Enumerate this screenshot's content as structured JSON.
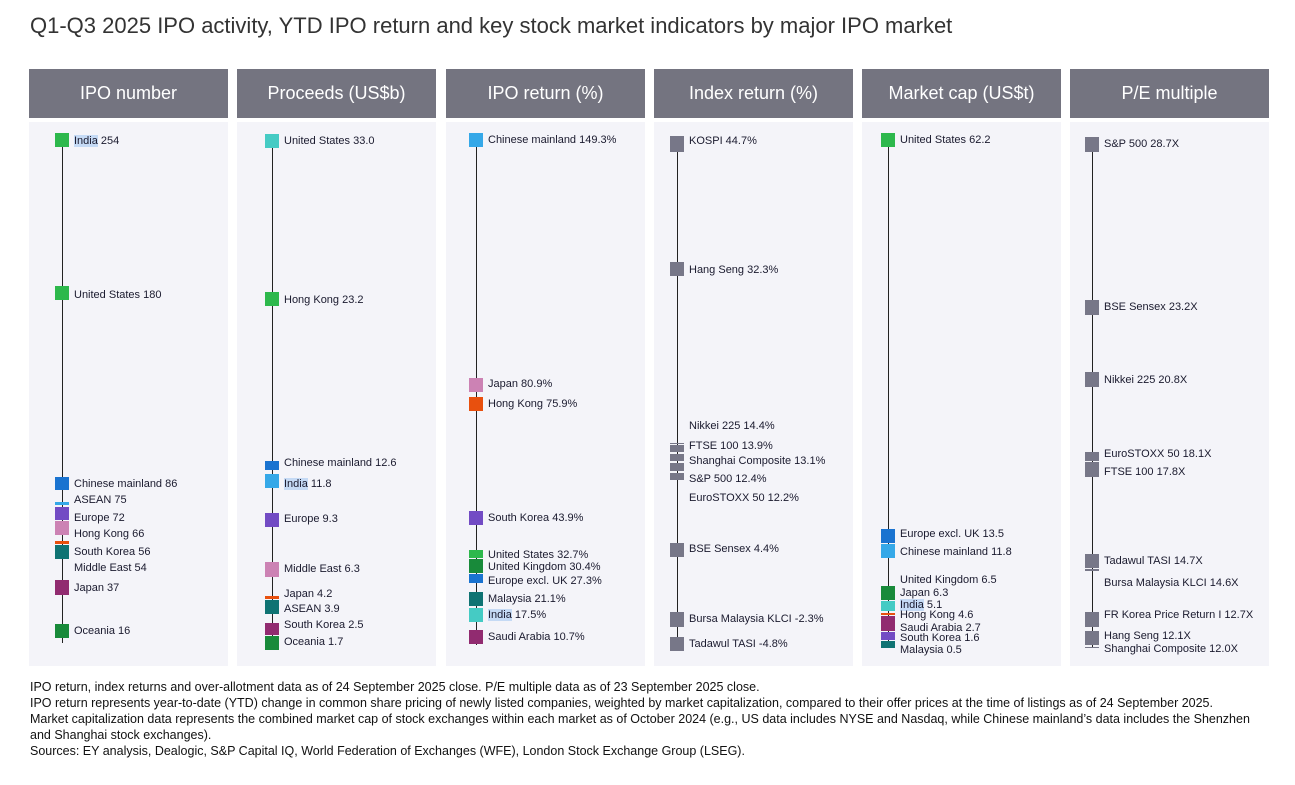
{
  "title": "Q1-Q3 2025 IPO activity, YTD IPO return and key stock market indicators by major IPO market",
  "chart_data": [
    {
      "type": "dot-scale",
      "title": "IPO number",
      "items": [
        {
          "name": "India",
          "value": "254",
          "color": "#2db84c"
        },
        {
          "name": "United States",
          "value": "180",
          "color": "#2db84c"
        },
        {
          "name": "Chinese mainland",
          "value": "86",
          "color": "#1a73d0"
        },
        {
          "name": "ASEAN",
          "value": "75",
          "color": "#35a8e8"
        },
        {
          "name": "Europe",
          "value": "72",
          "color": "#724bc4"
        },
        {
          "name": "Hong Kong",
          "value": "66",
          "color": "#cc82b4"
        },
        {
          "name": "Middle East",
          "value": "54",
          "color": "#e8500e"
        },
        {
          "name": "South Korea",
          "value": "56",
          "color": "#0f7373"
        },
        {
          "name": "Japan",
          "value": "37",
          "color": "#912b70"
        },
        {
          "name": "Oceania",
          "value": "16",
          "color": "#188a3a"
        }
      ]
    },
    {
      "type": "dot-scale",
      "title": "Proceeds (US$b)",
      "items": [
        {
          "name": "United States",
          "value": "33.0",
          "color": "#45cbc4"
        },
        {
          "name": "Hong Kong",
          "value": "23.2",
          "color": "#2db84c"
        },
        {
          "name": "Chinese mainland",
          "value": "12.6",
          "color": "#1a73d0"
        },
        {
          "name": "India",
          "value": "11.8",
          "color": "#35a8e8"
        },
        {
          "name": "Europe",
          "value": "9.3",
          "color": "#724bc4"
        },
        {
          "name": "Middle East",
          "value": "6.3",
          "color": "#cc82b4"
        },
        {
          "name": "Japan",
          "value": "4.2",
          "color": "#e8500e"
        },
        {
          "name": "ASEAN",
          "value": "3.9",
          "color": "#0f7373"
        },
        {
          "name": "South Korea",
          "value": "2.5",
          "color": "#912b70"
        },
        {
          "name": "Oceania",
          "value": "1.7",
          "color": "#188a3a"
        }
      ]
    },
    {
      "type": "dot-scale",
      "title": "IPO return (%)",
      "items": [
        {
          "name": "Chinese mainland",
          "value": "149.3%",
          "color": "#35a8e8"
        },
        {
          "name": "Japan",
          "value": "80.9%",
          "color": "#cc82b4"
        },
        {
          "name": "Hong Kong",
          "value": "75.9%",
          "color": "#e8500e"
        },
        {
          "name": "South Korea",
          "value": "43.9%",
          "color": "#724bc4"
        },
        {
          "name": "United States",
          "value": "32.7%",
          "color": "#2db84c"
        },
        {
          "name": "United Kingdom",
          "value": "30.4%",
          "color": "#188a3a"
        },
        {
          "name": "Europe excl. UK",
          "value": "27.3%",
          "color": "#1a73d0"
        },
        {
          "name": "Malaysia",
          "value": "21.1%",
          "color": "#0f7373"
        },
        {
          "name": "India",
          "value": "17.5%",
          "color": "#45cbc4"
        },
        {
          "name": "Saudi Arabia",
          "value": "10.7%",
          "color": "#912b70"
        }
      ]
    },
    {
      "type": "dot-scale",
      "title": "Index return (%)",
      "items": [
        {
          "name": "KOSPI",
          "value": "44.7%",
          "color": "#777788"
        },
        {
          "name": "Hang Seng",
          "value": "32.3%",
          "color": "#777788"
        },
        {
          "name": "Nikkei 225 ",
          "value": "14.4%",
          "color": "#777788"
        },
        {
          "name": "FTSE 100",
          "value": "13.9%",
          "color": "#777788"
        },
        {
          "name": "Shanghai Composite",
          "value": "13.1%",
          "color": "#777788"
        },
        {
          "name": "S&P 500",
          "value": "12.4%",
          "color": "#777788"
        },
        {
          "name": "EuroSTOXX 50",
          "value": "12.2%",
          "color": "#777788"
        },
        {
          "name": "BSE Sensex",
          "value": "4.4%",
          "color": "#777788"
        },
        {
          "name": "Bursa Malaysia KLCI",
          "value": "-2.3%",
          "color": "#777788"
        },
        {
          "name": "Tadawul TASI",
          "value": "-4.8%",
          "color": "#777788"
        }
      ]
    },
    {
      "type": "dot-scale",
      "title": "Market cap (US$t)",
      "items": [
        {
          "name": "United States",
          "value": "62.2",
          "color": "#2db84c"
        },
        {
          "name": "Europe excl. UK",
          "value": "13.5",
          "color": "#1a73d0"
        },
        {
          "name": "Chinese mainland",
          "value": "11.8",
          "color": "#35a8e8"
        },
        {
          "name": "United Kingdom",
          "value": "6.5",
          "color": "#188a3a"
        },
        {
          "name": "Japan",
          "value": "6.3",
          "color": "#188a3a"
        },
        {
          "name": "India",
          "value": "5.1",
          "color": "#45cbc4"
        },
        {
          "name": "Hong Kong",
          "value": "4.6",
          "color": "#e8500e"
        },
        {
          "name": "Saudi Arabia",
          "value": "2.7",
          "color": "#912b70"
        },
        {
          "name": "South Korea",
          "value": "1.6",
          "color": "#724bc4"
        },
        {
          "name": "Malaysia",
          "value": "0.5",
          "color": "#0f7373"
        }
      ]
    },
    {
      "type": "dot-scale",
      "title": "P/E multiple",
      "items": [
        {
          "name": "S&P 500",
          "value": "28.7X",
          "color": "#777788"
        },
        {
          "name": "BSE Sensex",
          "value": "23.2X",
          "color": "#777788"
        },
        {
          "name": "Nikkei 225",
          "value": "20.8X",
          "color": "#777788"
        },
        {
          "name": "EuroSTOXX 50",
          "value": "18.1X",
          "color": "#777788"
        },
        {
          "name": "FTSE 100",
          "value": "17.8X",
          "color": "#777788"
        },
        {
          "name": "Tadawul TASI",
          "value": "14.7X",
          "color": "#777788"
        },
        {
          "name": "Bursa Malaysia KLCI",
          "value": "14.6X",
          "color": "#777788"
        },
        {
          "name": "FR Korea Price Return I",
          "value": "12.7X",
          "color": "#777788"
        },
        {
          "name": "Hang Seng",
          "value": "12.1X",
          "color": "#777788"
        },
        {
          "name": "Shanghai Composite",
          "value": "12.0X",
          "color": "#777788"
        }
      ]
    }
  ],
  "notes": [
    "IPO return, index returns and over-allotment data as of 24 September 2025 close. P/E multiple data as of 23 September 2025 close.",
    "IPO return represents year-to-date (YTD) change in common share pricing of newly listed companies, weighted by market capitalization, compared to their offer prices at the time of listings as of 24 September 2025.",
    "Market capitalization data represents the combined market cap of stock exchanges within each market as of October 2024 (e.g., US data includes NYSE and Nasdaq, while Chinese mainland’s data includes the Shenzhen and Shanghai stock exchanges).",
    "Sources: EY analysis, Dealogic, S&P Capital IQ, World Federation of Exchanges (WFE), London Stock Exchange Group (LSEG)."
  ]
}
